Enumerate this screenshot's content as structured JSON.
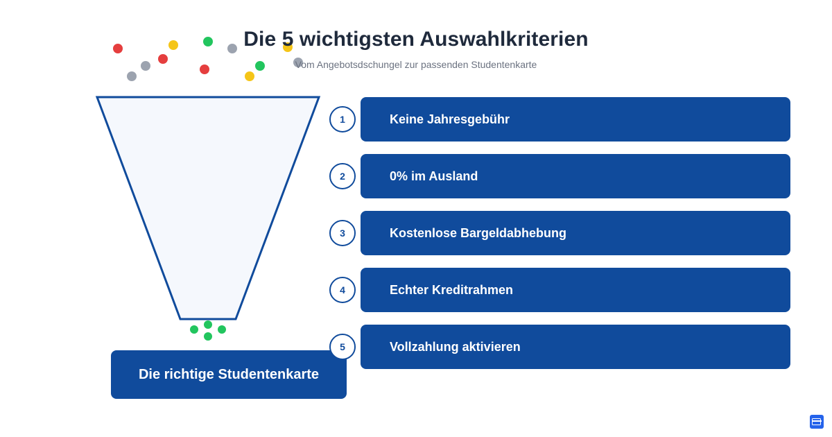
{
  "header": {
    "title": "Die 5 wichtigsten Auswahlkriterien",
    "subtitle": "Vom Angebotsdschungel zur passenden Studentenkarte"
  },
  "funnel": {
    "result_label": "Die richtige Studentenkarte",
    "colors": {
      "outline": "#104b9c",
      "fill": "#f5f8fd",
      "red": "#e53e3e",
      "yellow": "#f5c518",
      "green": "#22c55e",
      "gray": "#9ca3af"
    },
    "incoming_dot_colors": [
      "red",
      "yellow",
      "green",
      "gray",
      "yellow",
      "gray",
      "red",
      "gray",
      "red",
      "yellow",
      "green",
      "gray"
    ],
    "output_dot_colors": [
      "green",
      "green",
      "green",
      "green"
    ]
  },
  "criteria": [
    {
      "number": "1",
      "label": "Keine Jahresgebühr"
    },
    {
      "number": "2",
      "label": "0% im Ausland"
    },
    {
      "number": "3",
      "label": "Kostenlose Bargeldabhebung"
    },
    {
      "number": "4",
      "label": "Echter Kreditrahmen"
    },
    {
      "number": "5",
      "label": "Vollzahlung aktivieren"
    }
  ],
  "theme": {
    "primary": "#104b9c",
    "title_color": "#1f2a3c",
    "subtitle_color": "#6b7280"
  },
  "corner_icon": "credit-card-icon"
}
